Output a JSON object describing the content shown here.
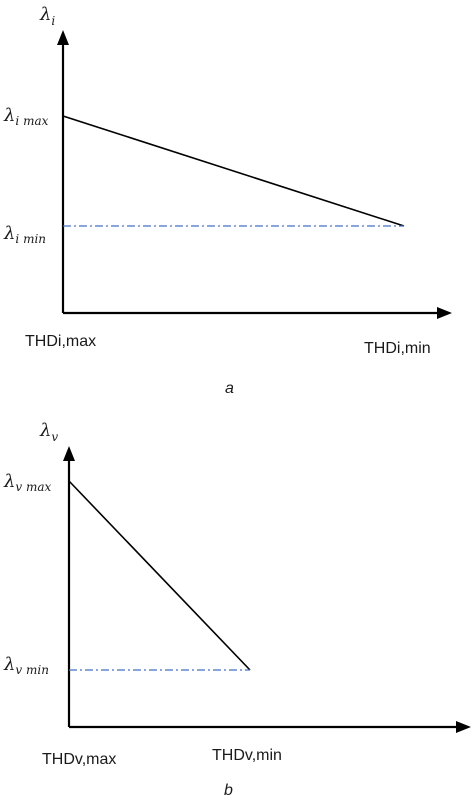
{
  "colors": {
    "axis": "#000000",
    "trend_line": "#000000",
    "reference_line": "#4472C4"
  },
  "chart_data": [
    {
      "type": "line",
      "panel_label": "a",
      "ylabel": {
        "symbol": "λ",
        "subscript": "i"
      },
      "x_tick_labels": [
        "THDi,max",
        "THDi,min"
      ],
      "y_tick_labels": [
        {
          "symbol": "λ",
          "subscript": "i max"
        },
        {
          "symbol": "λ",
          "subscript": "i min"
        }
      ],
      "series": [
        {
          "style": "solid",
          "x": [
            "THDi,max",
            "THDi,min"
          ],
          "y": [
            "λi max",
            "λi min"
          ]
        },
        {
          "style": "dash-dot",
          "x": [
            "THDi,max",
            "THDi,min"
          ],
          "y": [
            "λi min",
            "λi min"
          ]
        }
      ],
      "grid": false,
      "legend": "none"
    },
    {
      "type": "line",
      "panel_label": "b",
      "ylabel": {
        "symbol": "λ",
        "subscript": "v"
      },
      "x_tick_labels": [
        "THDv,max",
        "THDv,min"
      ],
      "y_tick_labels": [
        {
          "symbol": "λ",
          "subscript": "v max"
        },
        {
          "symbol": "λ",
          "subscript": "v min"
        }
      ],
      "series": [
        {
          "style": "solid",
          "x": [
            "THDv,max",
            "THDv,min"
          ],
          "y": [
            "λv max",
            "λv min"
          ]
        },
        {
          "style": "dash-dot",
          "x": [
            "THDv,max",
            "THDv,min"
          ],
          "y": [
            "λv min",
            "λv min"
          ]
        }
      ],
      "grid": false,
      "legend": "none"
    }
  ]
}
